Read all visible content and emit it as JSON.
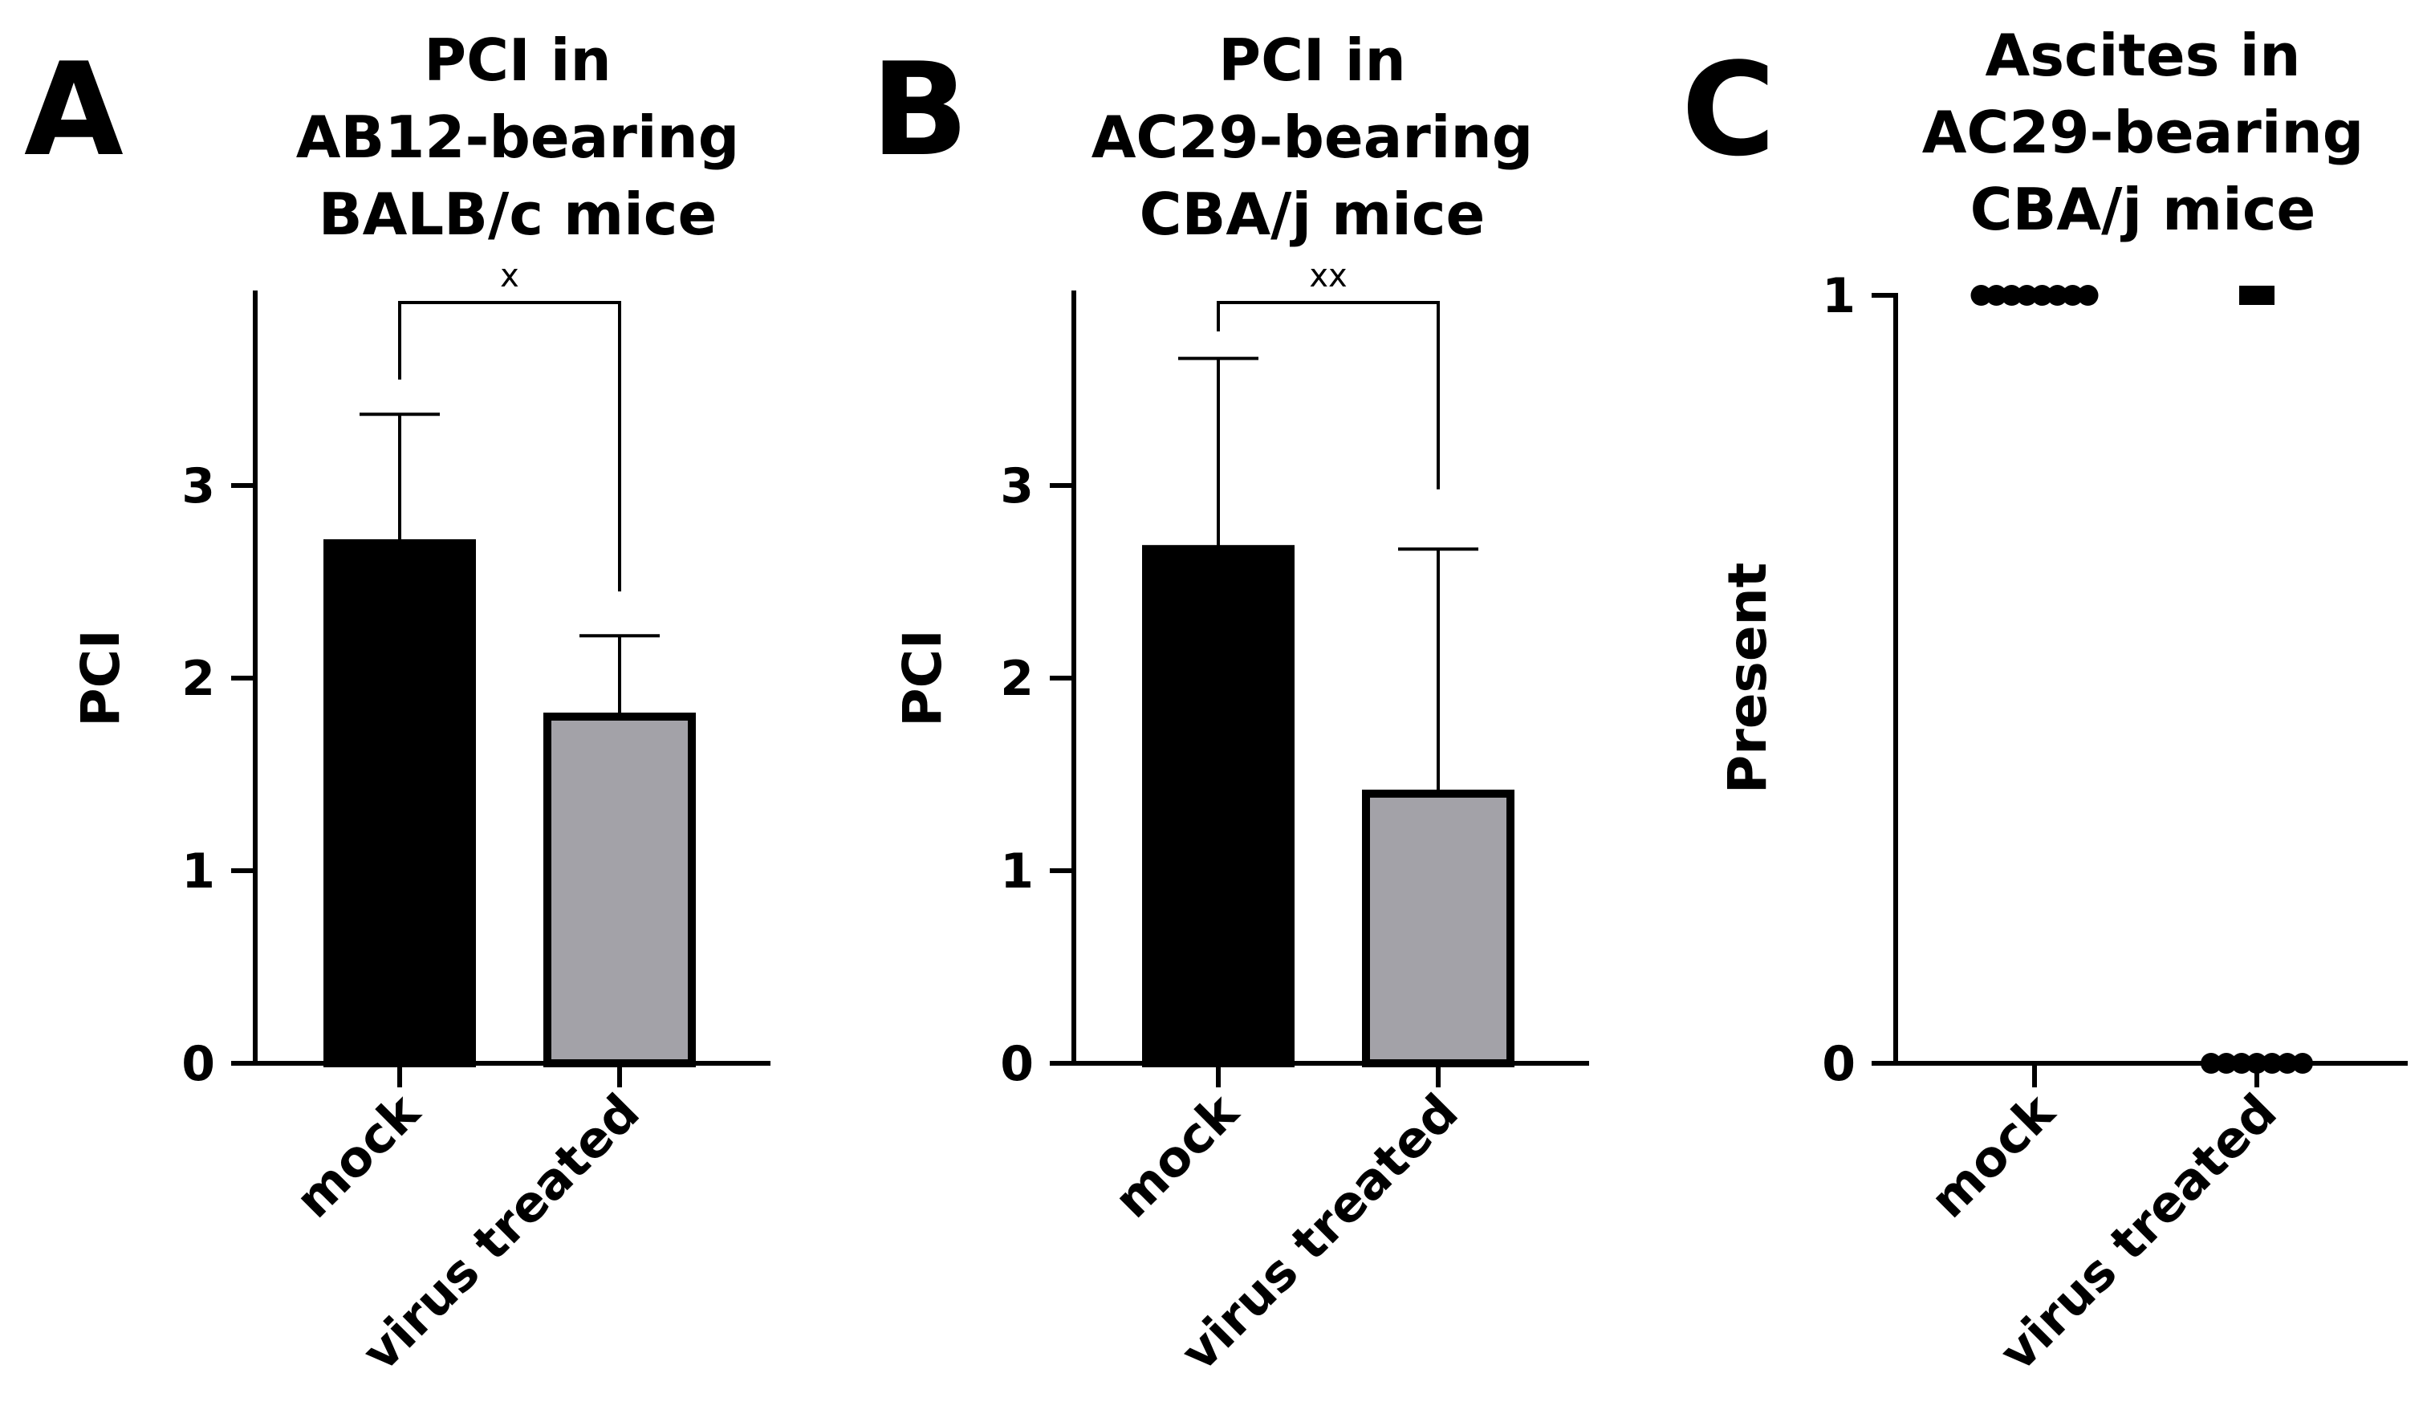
{
  "figure": {
    "panels": [
      {
        "letter": "A"
      },
      {
        "letter": "B"
      },
      {
        "letter": "C"
      }
    ]
  },
  "colors": {
    "mock": "#000000",
    "virus_treated": "#a3a2a8",
    "axis": "#000000"
  },
  "chart_data": [
    {
      "panel": "A",
      "type": "bar",
      "title": [
        "PCI in",
        "AB12-bearing",
        "BALB/c mice"
      ],
      "ylabel": "PCI",
      "xlabel": "",
      "categories": [
        "mock",
        "virus treated"
      ],
      "values": [
        2.7,
        1.8
      ],
      "error_upper": [
        3.37,
        2.22
      ],
      "ylim": [
        0,
        3.95
      ],
      "yticks": [
        0,
        1,
        2,
        3
      ],
      "significance": {
        "label": "x",
        "between": [
          0,
          1
        ],
        "mock_leg_bottom": 3.55,
        "treated_leg_bottom": 2.45,
        "bracket_y": 3.95
      }
    },
    {
      "panel": "B",
      "type": "bar",
      "title": [
        "PCI in",
        "AC29-bearing",
        "CBA/j mice"
      ],
      "ylabel": "PCI",
      "xlabel": "",
      "categories": [
        "mock",
        "virus treated"
      ],
      "values": [
        2.67,
        1.4
      ],
      "error_upper": [
        3.66,
        2.67
      ],
      "ylim": [
        0,
        3.95
      ],
      "yticks": [
        0,
        1,
        2,
        3
      ],
      "significance": {
        "label": "xx",
        "between": [
          0,
          1
        ],
        "mock_leg_bottom": 3.8,
        "treated_leg_bottom": 2.98,
        "bracket_y": 3.95
      }
    },
    {
      "panel": "C",
      "type": "scatter",
      "title": [
        "Ascites in",
        "AC29-bearing",
        "CBA/j mice"
      ],
      "ylabel": "Present",
      "xlabel": "",
      "categories": [
        "mock",
        "virus treated"
      ],
      "yticks": [
        0,
        1
      ],
      "ylim": [
        0,
        1
      ],
      "points": [
        {
          "category": "mock",
          "y": 1,
          "count": 8
        },
        {
          "category": "virus treated",
          "y": 1,
          "count": 1
        },
        {
          "category": "virus treated",
          "y": 0,
          "count": 7
        }
      ]
    }
  ]
}
